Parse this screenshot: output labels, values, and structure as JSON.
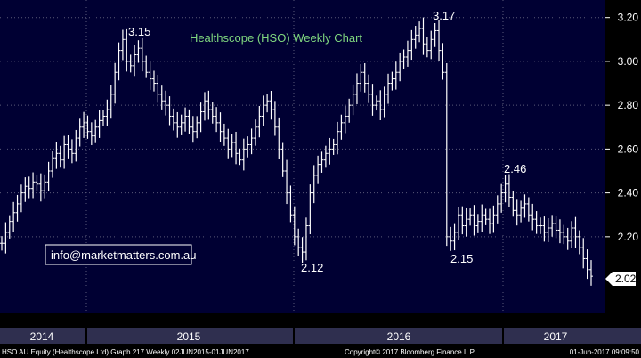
{
  "chart_data": {
    "type": "ohlc",
    "title": "Healthscope (HSO) Weekly Chart",
    "y_ticks": [
      "3.20",
      "3.00",
      "2.80",
      "2.60",
      "2.40",
      "2.20"
    ],
    "ylim": [
      1.85,
      3.28
    ],
    "x_labels": [
      "2014",
      "2015",
      "2016",
      "2017"
    ],
    "last_price": "2.02",
    "annotations": [
      {
        "text": "3.15",
        "value": 3.15
      },
      {
        "text": "2.12",
        "value": 2.12
      },
      {
        "text": "3.17",
        "value": 3.17
      },
      {
        "text": "2.15",
        "value": 2.15
      },
      {
        "text": "2.46",
        "value": 2.46
      }
    ],
    "grid": true,
    "weekly_close": [
      2.17,
      2.22,
      2.27,
      2.31,
      2.35,
      2.4,
      2.43,
      2.42,
      2.45,
      2.44,
      2.41,
      2.45,
      2.5,
      2.56,
      2.58,
      2.55,
      2.62,
      2.6,
      2.58,
      2.65,
      2.7,
      2.72,
      2.68,
      2.66,
      2.7,
      2.73,
      2.75,
      2.78,
      2.85,
      2.95,
      3.05,
      3.1,
      3.0,
      2.98,
      3.03,
      3.06,
      3.0,
      2.95,
      2.92,
      2.9,
      2.85,
      2.82,
      2.8,
      2.75,
      2.72,
      2.7,
      2.72,
      2.75,
      2.7,
      2.68,
      2.72,
      2.77,
      2.82,
      2.78,
      2.75,
      2.72,
      2.68,
      2.65,
      2.6,
      2.63,
      2.58,
      2.55,
      2.6,
      2.62,
      2.65,
      2.7,
      2.75,
      2.8,
      2.82,
      2.78,
      2.7,
      2.6,
      2.5,
      2.4,
      2.3,
      2.2,
      2.15,
      2.13,
      2.25,
      2.4,
      2.48,
      2.53,
      2.55,
      2.58,
      2.6,
      2.62,
      2.68,
      2.72,
      2.75,
      2.8,
      2.85,
      2.9,
      2.95,
      2.9,
      2.85,
      2.8,
      2.82,
      2.78,
      2.85,
      2.9,
      2.92,
      2.95,
      3.0,
      3.02,
      3.05,
      3.1,
      3.12,
      3.15,
      3.08,
      3.05,
      3.1,
      3.14,
      3.05,
      2.95,
      2.2,
      2.18,
      2.22,
      2.3,
      2.25,
      2.28,
      2.3,
      2.25,
      2.27,
      2.3,
      2.28,
      2.26,
      2.3,
      2.35,
      2.4,
      2.44,
      2.38,
      2.32,
      2.3,
      2.33,
      2.35,
      2.3,
      2.28,
      2.25,
      2.25,
      2.22,
      2.24,
      2.26,
      2.23,
      2.22,
      2.2,
      2.18,
      2.24,
      2.2,
      2.15,
      2.1,
      2.05,
      2.02
    ]
  },
  "info_box": {
    "text": "info@marketmatters.com.au"
  },
  "footer": {
    "left": "HSO AU Equity (Healthscope Ltd) Graph 217  Weekly 02JUN2015-01JUN2017",
    "center": "Copyright© 2017 Bloomberg Finance L.P.",
    "right": "01-Jun-2017 09:09:50"
  },
  "colors": {
    "plot_bg": "#000033",
    "bars": "#ffffff",
    "grid": "#5a5a78",
    "title": "#7fd67f",
    "timeline_bg": "#2f2f4f",
    "last_label_bg": "#ffffff"
  }
}
